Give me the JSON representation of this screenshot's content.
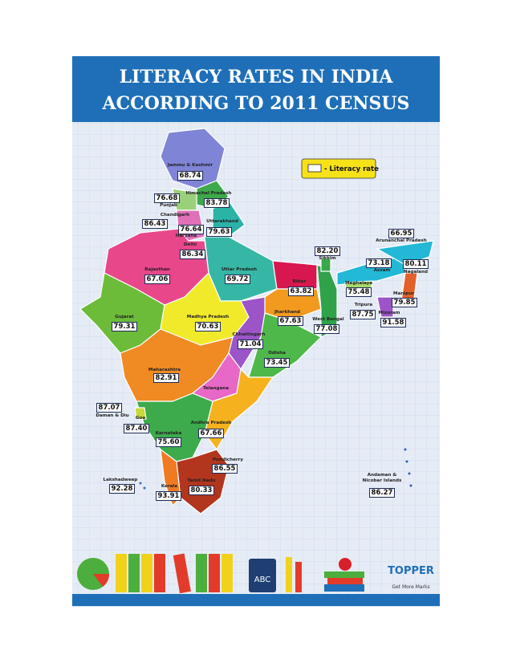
{
  "header": {
    "title_lines": [
      "LITERACY RATES IN INDIA",
      "ACCORDING  TO  2011 CENSUS"
    ]
  },
  "legend": {
    "label": "- Literacy rate"
  },
  "states": [
    {
      "name": "Jammu & Kashmir",
      "value": "68.74"
    },
    {
      "name": "Himachal Pradesh",
      "value": "83.78"
    },
    {
      "name": "Punjab",
      "value": "76.68"
    },
    {
      "name": "Chandigarh",
      "value": "86.43"
    },
    {
      "name": "Uttarakhand",
      "value": "79.63"
    },
    {
      "name": "Haryana",
      "value": "76.64"
    },
    {
      "name": "Delhi",
      "value": "86.34"
    },
    {
      "name": "Rajasthan",
      "value": "67.06"
    },
    {
      "name": "Uttar Pradesh",
      "value": "69.72"
    },
    {
      "name": "Sikkim",
      "value": "82.20"
    },
    {
      "name": "Arunanchal Pradesh",
      "value": "66.95"
    },
    {
      "name": "Assam",
      "value": "73.18"
    },
    {
      "name": "Nagaland",
      "value": "80.11"
    },
    {
      "name": "Bihar",
      "value": "63.82"
    },
    {
      "name": "Meghalaya",
      "value": "75.48"
    },
    {
      "name": "Manipur",
      "value": "79.85"
    },
    {
      "name": "Gujarat",
      "value": "79.31"
    },
    {
      "name": "Madhya Pradesh",
      "value": "70.63"
    },
    {
      "name": "Jharkhand",
      "value": "67.63"
    },
    {
      "name": "West Bengal",
      "value": "77.08"
    },
    {
      "name": "Tripura",
      "value": "87.75"
    },
    {
      "name": "Mizoram",
      "value": "91.58"
    },
    {
      "name": "Chhattisgarh",
      "value": "71.04"
    },
    {
      "name": "Odisha",
      "value": "73.45"
    },
    {
      "name": "Maharashtra",
      "value": "82.91"
    },
    {
      "name": "Telangana"
    },
    {
      "name": "Daman & Diu",
      "value": "87.07"
    },
    {
      "name": "Goa",
      "value": "87.40"
    },
    {
      "name": "Karnataka",
      "value": "75.60"
    },
    {
      "name": "Andhra Pradesh",
      "value": "67.66"
    },
    {
      "name": "Pondicherry",
      "value": "86.55"
    },
    {
      "name": "Tamil Nadu",
      "value": "80.33"
    },
    {
      "name": "Lakshadweep",
      "value": "92.28"
    },
    {
      "name": "Kerala",
      "value": "93.91"
    },
    {
      "name": [
        "Andaman &",
        "Nicobar Islands"
      ],
      "value": "86.27"
    }
  ],
  "footer": {
    "book_label": "ABC",
    "brand": "TOPPER",
    "tagline": "Get More Marks"
  }
}
